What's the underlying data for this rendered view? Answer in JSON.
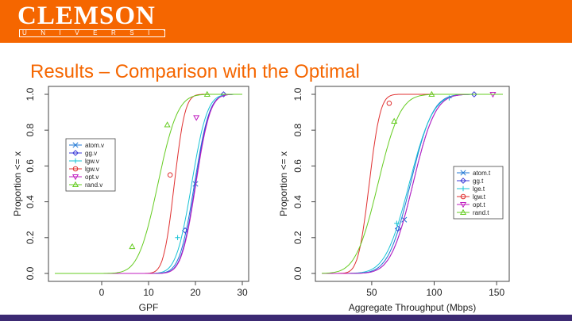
{
  "header": {
    "logo_word": "CLEMSON",
    "logo_sub": "UNIVERSITY",
    "bg_color": "#f56600"
  },
  "slide": {
    "title": "Results – Comparison with the Optimal"
  },
  "chart_data": [
    {
      "type": "line",
      "xlabel": "GPF",
      "ylabel": "Proportion <= x",
      "xlim": [
        -10,
        30
      ],
      "ylim": [
        0,
        1
      ],
      "xticks": [
        0,
        10,
        20,
        30
      ],
      "yticks": [
        0.0,
        0.2,
        0.4,
        0.6,
        0.8,
        1.0
      ],
      "legend_position": "top-left",
      "series": [
        {
          "name": "atom.v",
          "marker": "x",
          "color": "#1f77d4",
          "cdf": {
            "mean": 19.8,
            "sd": 2.5
          },
          "marker_points": [
            [
              20,
              0.5
            ]
          ]
        },
        {
          "name": "gg.v",
          "marker": "diamond",
          "color": "#3b3bd8",
          "cdf": {
            "mean": 20.0,
            "sd": 2.4
          },
          "marker_points": [
            [
              17.8,
              0.24
            ],
            [
              26.0,
              1.0
            ]
          ]
        },
        {
          "name": "lgw.v",
          "marker": "+",
          "color": "#17c3d6",
          "cdf": {
            "mean": 19.2,
            "sd": 2.6
          },
          "marker_points": [
            [
              16.2,
              0.2
            ]
          ]
        },
        {
          "name": "lgw.v",
          "marker": "circle",
          "color": "#e03030",
          "cdf": {
            "mean": 15.5,
            "sd": 1.8
          },
          "marker_points": [
            [
              14.6,
              0.55
            ]
          ]
        },
        {
          "name": "opt.v",
          "marker": "triangle-down",
          "color": "#c01fc0",
          "cdf": {
            "mean": 20.1,
            "sd": 2.4
          },
          "marker_points": [
            [
              20.2,
              0.87
            ]
          ]
        },
        {
          "name": "rand.v",
          "marker": "triangle",
          "color": "#66cc22",
          "cdf": {
            "mean": 12.0,
            "sd": 3.3
          },
          "marker_points": [
            [
              6.5,
              0.15
            ],
            [
              14.0,
              0.83
            ],
            [
              22.5,
              1.0
            ]
          ]
        }
      ]
    },
    {
      "type": "line",
      "xlabel": "Aggregate Throughput (Mbps)",
      "ylabel": "Proportion <= x",
      "xlim": [
        10,
        155
      ],
      "ylim": [
        0,
        1
      ],
      "xticks": [
        50,
        100,
        150
      ],
      "yticks": [
        0.0,
        0.2,
        0.4,
        0.6,
        0.8,
        1.0
      ],
      "legend_position": "center-right",
      "series": [
        {
          "name": "atom.t",
          "marker": "x",
          "color": "#1f77d4",
          "cdf": {
            "mean": 81,
            "sd": 14
          },
          "marker_points": [
            [
              76,
              0.3
            ]
          ]
        },
        {
          "name": "gg.t",
          "marker": "diamond",
          "color": "#3b3bd8",
          "cdf": {
            "mean": 83,
            "sd": 14
          },
          "marker_points": [
            [
              71,
              0.25
            ],
            [
              132,
              1.0
            ]
          ]
        },
        {
          "name": "lge.t",
          "marker": "+",
          "color": "#17c3d6",
          "cdf": {
            "mean": 80,
            "sd": 15
          },
          "marker_points": [
            [
              70,
              0.28
            ],
            [
              112,
              0.98
            ]
          ]
        },
        {
          "name": "lgw.t",
          "marker": "circle",
          "color": "#e03030",
          "cdf": {
            "mean": 48,
            "sd": 7
          },
          "marker_points": [
            [
              64,
              0.95
            ]
          ]
        },
        {
          "name": "opt.t",
          "marker": "triangle-down",
          "color": "#c01fc0",
          "cdf": {
            "mean": 83,
            "sd": 14
          },
          "marker_points": [
            [
              147,
              1.0
            ]
          ]
        },
        {
          "name": "rand.t",
          "marker": "triangle",
          "color": "#66cc22",
          "cdf": {
            "mean": 55,
            "sd": 14
          },
          "marker_points": [
            [
              68,
              0.85
            ],
            [
              98,
              1.0
            ]
          ]
        }
      ]
    }
  ]
}
